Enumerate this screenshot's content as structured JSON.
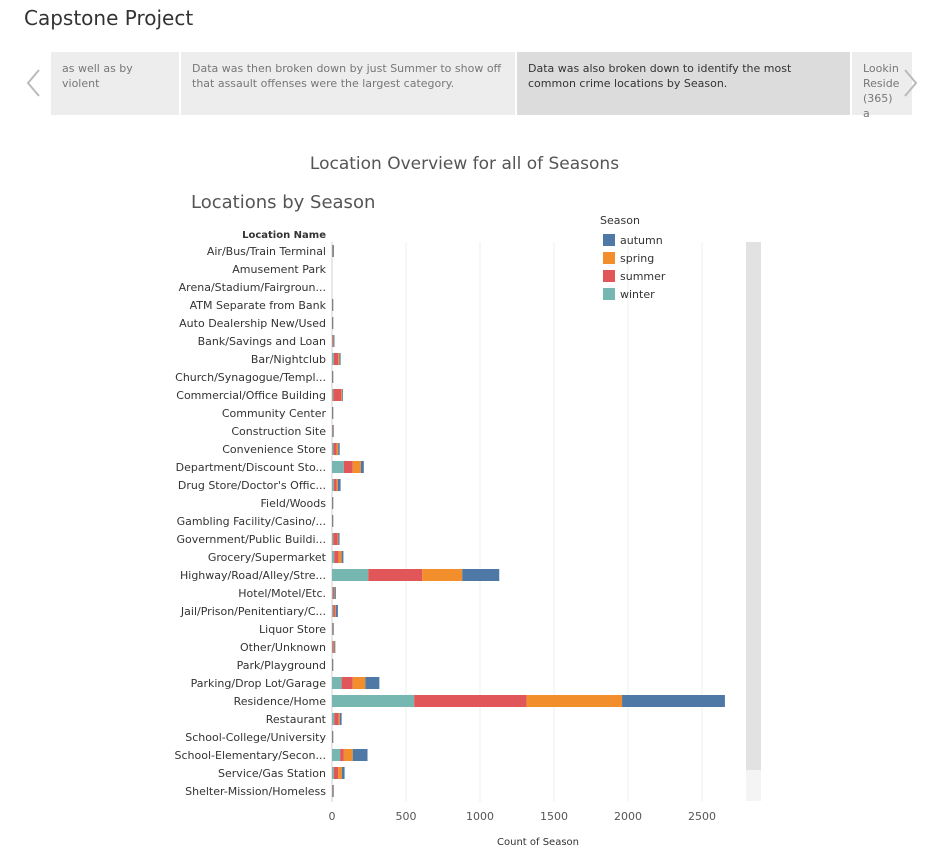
{
  "story": {
    "title": "Capstone Project",
    "points": [
      {
        "text": "as well as by violent"
      },
      {
        "text": "Data was then broken down by just Summer to show off that assault offenses were the largest category."
      },
      {
        "text": "Data was also broken down to identify the most common crime locations by Season."
      },
      {
        "text": "Lookin Reside (365) a"
      }
    ]
  },
  "dashboard": {
    "title": "Location Overview for all of Seasons",
    "sheet_title": "Locations by Season"
  },
  "chart_data": {
    "type": "bar",
    "orientation": "horizontal",
    "stacked": true,
    "title": "Locations by Season",
    "row_header": "Location Name",
    "xlabel": "Count of Season",
    "xlim": [
      0,
      2800
    ],
    "xticks": [
      0,
      500,
      1000,
      1500,
      2000,
      2500
    ],
    "grid": true,
    "legend_title": "Season",
    "legend_position": "top-right",
    "categories": [
      "Air/Bus/Train Terminal",
      "Amusement Park",
      "Arena/Stadium/Fairgroun...",
      "ATM Separate from Bank",
      "Auto Dealership New/Used",
      "Bank/Savings and Loan",
      "Bar/Nightclub",
      "Church/Synagogue/Templ...",
      "Commercial/Office Building",
      "Community Center",
      "Construction Site",
      "Convenience Store",
      "Department/Discount Sto...",
      "Drug Store/Doctor's Offic...",
      "Field/Woods",
      "Gambling Facility/Casino/...",
      "Government/Public Buildi...",
      "Grocery/Supermarket",
      "Highway/Road/Alley/Stre...",
      "Hotel/Motel/Etc.",
      "Jail/Prison/Penitentiary/C...",
      "Liquor Store",
      "Other/Unknown",
      "Park/Playground",
      "Parking/Drop Lot/Garage",
      "Residence/Home",
      "Restaurant",
      "School-College/University",
      "School-Elementary/Secon...",
      "Service/Gas Station",
      "Shelter-Mission/Homeless"
    ],
    "series": [
      {
        "name": "winter",
        "color": "#76b7b2",
        "values": [
          3,
          0,
          0,
          1,
          1,
          4,
          12,
          1,
          8,
          1,
          2,
          10,
          80,
          12,
          1,
          1,
          8,
          15,
          245,
          6,
          8,
          2,
          4,
          1,
          65,
          555,
          15,
          1,
          55,
          12,
          2
        ]
      },
      {
        "name": "summer",
        "color": "#e15759",
        "values": [
          2,
          0,
          0,
          1,
          1,
          4,
          30,
          1,
          55,
          1,
          2,
          20,
          60,
          20,
          1,
          1,
          30,
          30,
          365,
          8,
          12,
          2,
          8,
          1,
          75,
          760,
          30,
          1,
          25,
          30,
          2
        ]
      },
      {
        "name": "spring",
        "color": "#f28e2b",
        "values": [
          2,
          0,
          0,
          1,
          1,
          3,
          8,
          1,
          5,
          1,
          2,
          12,
          55,
          8,
          1,
          1,
          5,
          20,
          270,
          4,
          6,
          2,
          5,
          1,
          85,
          645,
          8,
          1,
          60,
          25,
          2
        ]
      },
      {
        "name": "autumn",
        "color": "#4e79a7",
        "values": [
          3,
          0,
          0,
          1,
          1,
          4,
          8,
          1,
          4,
          1,
          2,
          10,
          20,
          18,
          1,
          1,
          8,
          12,
          250,
          8,
          14,
          2,
          4,
          1,
          95,
          695,
          12,
          1,
          100,
          18,
          2
        ]
      }
    ],
    "legend_order": [
      "autumn",
      "spring",
      "summer",
      "winter"
    ]
  }
}
